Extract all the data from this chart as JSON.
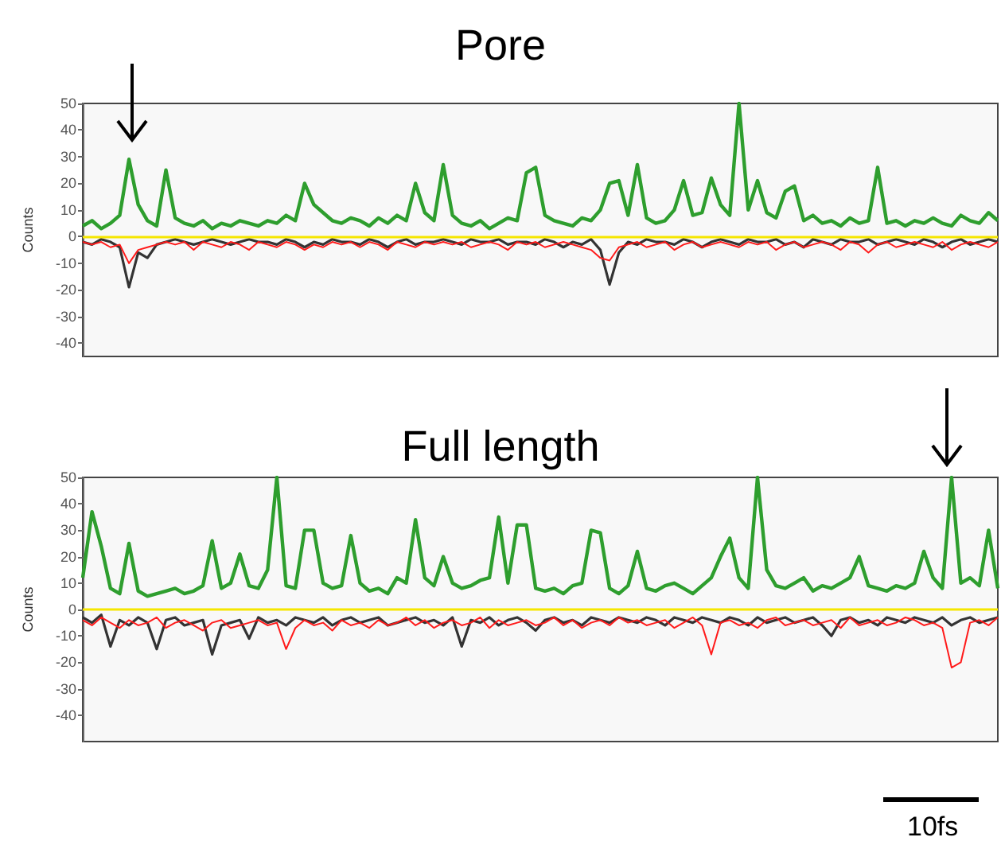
{
  "chart_data": [
    {
      "type": "line",
      "title": "Pore",
      "ylabel": "Counts",
      "tick_labels": "y",
      "grid": false,
      "line_style": "solid",
      "categories": [
        null,
        null,
        null,
        null,
        null,
        null,
        null,
        null,
        null,
        null,
        null,
        null,
        null,
        null,
        null,
        null,
        null,
        null,
        null,
        null,
        null,
        null,
        null,
        null,
        null,
        null,
        null,
        null,
        null,
        null,
        null,
        null,
        null,
        null,
        null,
        null,
        null,
        null,
        null,
        null,
        null,
        null,
        null,
        null,
        null,
        null,
        null,
        null,
        null,
        null,
        null,
        null,
        null,
        null,
        null,
        null,
        null,
        null,
        null,
        null,
        null,
        null,
        null,
        null,
        null,
        null,
        null,
        null,
        null,
        null,
        null,
        null,
        null,
        null,
        null,
        null,
        null,
        null,
        null,
        null,
        null,
        null,
        null,
        null,
        null,
        null,
        null,
        null,
        null,
        null,
        null,
        null,
        null,
        null,
        null,
        null,
        null,
        null,
        null,
        null
      ],
      "ylim": [
        -45,
        50
      ],
      "yticks": [
        -40,
        -30,
        -20,
        -10,
        0,
        10,
        20,
        30,
        40,
        50
      ],
      "ref_lines": [
        {
          "axis": "y",
          "value": 0,
          "color": "#f5e600"
        }
      ],
      "series": [
        {
          "color": "#2e9e2e",
          "values": [
            4,
            6,
            3,
            5,
            8,
            29,
            12,
            6,
            4,
            25,
            7,
            5,
            4,
            6,
            3,
            5,
            4,
            6,
            5,
            4,
            6,
            5,
            8,
            6,
            20,
            12,
            9,
            6,
            5,
            7,
            6,
            4,
            7,
            5,
            8,
            6,
            20,
            9,
            6,
            27,
            8,
            5,
            4,
            6,
            3,
            5,
            7,
            6,
            24,
            26,
            8,
            6,
            5,
            4,
            7,
            6,
            10,
            20,
            21,
            8,
            27,
            7,
            5,
            6,
            10,
            21,
            8,
            9,
            22,
            12,
            8,
            50,
            10,
            21,
            9,
            7,
            17,
            19,
            6,
            8,
            5,
            6,
            4,
            7,
            5,
            6,
            26,
            5,
            6,
            4,
            6,
            5,
            7,
            5,
            4,
            8,
            6,
            5,
            9,
            6
          ]
        },
        {
          "color": "#333333",
          "values": [
            -2,
            -3,
            -1,
            -2,
            -4,
            -19,
            -6,
            -8,
            -3,
            -2,
            -1,
            -2,
            -3,
            -2,
            -1,
            -2,
            -3,
            -2,
            -1,
            -2,
            -2,
            -3,
            -1,
            -2,
            -4,
            -2,
            -3,
            -1,
            -2,
            -2,
            -3,
            -1,
            -2,
            -4,
            -2,
            -1,
            -3,
            -2,
            -2,
            -1,
            -2,
            -3,
            -1,
            -2,
            -2,
            -1,
            -3,
            -2,
            -2,
            -3,
            -1,
            -2,
            -4,
            -2,
            -3,
            -1,
            -5,
            -18,
            -6,
            -2,
            -3,
            -1,
            -2,
            -2,
            -3,
            -1,
            -2,
            -4,
            -2,
            -1,
            -2,
            -3,
            -1,
            -2,
            -2,
            -1,
            -3,
            -2,
            -4,
            -1,
            -2,
            -3,
            -1,
            -2,
            -2,
            -1,
            -3,
            -2,
            -1,
            -2,
            -3,
            -1,
            -2,
            -4,
            -2,
            -1,
            -3,
            -2,
            -1,
            -2
          ]
        },
        {
          "color": "#ff1a1a",
          "values": [
            -2,
            -3,
            -2,
            -4,
            -3,
            -10,
            -5,
            -4,
            -3,
            -2,
            -3,
            -2,
            -5,
            -2,
            -3,
            -4,
            -2,
            -3,
            -5,
            -2,
            -3,
            -4,
            -2,
            -3,
            -5,
            -3,
            -4,
            -2,
            -3,
            -2,
            -4,
            -2,
            -3,
            -5,
            -2,
            -3,
            -4,
            -2,
            -3,
            -2,
            -3,
            -2,
            -4,
            -3,
            -2,
            -3,
            -5,
            -2,
            -3,
            -2,
            -4,
            -3,
            -2,
            -3,
            -4,
            -5,
            -8,
            -9,
            -4,
            -3,
            -2,
            -4,
            -3,
            -2,
            -5,
            -3,
            -2,
            -4,
            -3,
            -2,
            -3,
            -4,
            -2,
            -3,
            -2,
            -5,
            -3,
            -2,
            -4,
            -3,
            -2,
            -3,
            -5,
            -2,
            -3,
            -6,
            -3,
            -2,
            -4,
            -3,
            -2,
            -3,
            -4,
            -2,
            -5,
            -3,
            -2,
            -3,
            -4,
            -2
          ]
        }
      ]
    },
    {
      "type": "line",
      "title": "Full length",
      "ylabel": "Counts",
      "tick_labels": "y",
      "grid": false,
      "line_style": "solid",
      "categories": [
        null,
        null,
        null,
        null,
        null,
        null,
        null,
        null,
        null,
        null,
        null,
        null,
        null,
        null,
        null,
        null,
        null,
        null,
        null,
        null,
        null,
        null,
        null,
        null,
        null,
        null,
        null,
        null,
        null,
        null,
        null,
        null,
        null,
        null,
        null,
        null,
        null,
        null,
        null,
        null,
        null,
        null,
        null,
        null,
        null,
        null,
        null,
        null,
        null,
        null,
        null,
        null,
        null,
        null,
        null,
        null,
        null,
        null,
        null,
        null,
        null,
        null,
        null,
        null,
        null,
        null,
        null,
        null,
        null,
        null,
        null,
        null,
        null,
        null,
        null,
        null,
        null,
        null,
        null,
        null,
        null,
        null,
        null,
        null,
        null,
        null,
        null,
        null,
        null,
        null,
        null,
        null,
        null,
        null,
        null,
        null,
        null,
        null,
        null,
        null
      ],
      "ylim": [
        -50,
        50
      ],
      "yticks": [
        -40,
        -30,
        -20,
        -10,
        0,
        10,
        20,
        30,
        40,
        50
      ],
      "ref_lines": [
        {
          "axis": "y",
          "value": 0,
          "color": "#f5e600"
        }
      ],
      "annotations": [
        "10fs"
      ],
      "series": [
        {
          "color": "#2e9e2e",
          "values": [
            12,
            37,
            24,
            8,
            6,
            25,
            7,
            5,
            6,
            7,
            8,
            6,
            7,
            9,
            26,
            8,
            10,
            21,
            9,
            8,
            15,
            50,
            9,
            8,
            30,
            30,
            10,
            8,
            9,
            28,
            10,
            7,
            8,
            6,
            12,
            10,
            34,
            12,
            9,
            20,
            10,
            8,
            9,
            11,
            12,
            35,
            10,
            32,
            32,
            8,
            7,
            8,
            6,
            9,
            10,
            30,
            29,
            8,
            6,
            9,
            22,
            8,
            7,
            9,
            10,
            8,
            6,
            9,
            12,
            20,
            27,
            12,
            8,
            50,
            15,
            9,
            8,
            10,
            12,
            7,
            9,
            8,
            10,
            12,
            20,
            9,
            8,
            7,
            9,
            8,
            10,
            22,
            12,
            8,
            50,
            10,
            12,
            9,
            30,
            8
          ]
        },
        {
          "color": "#333333",
          "values": [
            -3,
            -5,
            -2,
            -14,
            -4,
            -6,
            -3,
            -5,
            -15,
            -4,
            -3,
            -6,
            -5,
            -4,
            -17,
            -6,
            -5,
            -4,
            -11,
            -3,
            -5,
            -4,
            -6,
            -3,
            -4,
            -5,
            -3,
            -6,
            -4,
            -3,
            -5,
            -4,
            -3,
            -6,
            -5,
            -4,
            -3,
            -5,
            -4,
            -6,
            -3,
            -14,
            -4,
            -5,
            -3,
            -6,
            -4,
            -3,
            -5,
            -8,
            -4,
            -3,
            -5,
            -4,
            -6,
            -3,
            -4,
            -5,
            -3,
            -4,
            -5,
            -3,
            -4,
            -6,
            -3,
            -4,
            -5,
            -3,
            -4,
            -5,
            -3,
            -4,
            -6,
            -3,
            -5,
            -4,
            -3,
            -5,
            -4,
            -3,
            -6,
            -10,
            -4,
            -3,
            -5,
            -4,
            -6,
            -3,
            -4,
            -5,
            -3,
            -4,
            -5,
            -3,
            -6,
            -4,
            -3,
            -5,
            -4,
            -3
          ]
        },
        {
          "color": "#ff1a1a",
          "values": [
            -4,
            -6,
            -3,
            -5,
            -7,
            -4,
            -6,
            -5,
            -3,
            -7,
            -5,
            -4,
            -6,
            -8,
            -5,
            -4,
            -7,
            -6,
            -5,
            -4,
            -6,
            -5,
            -15,
            -7,
            -4,
            -6,
            -5,
            -8,
            -4,
            -6,
            -5,
            -7,
            -4,
            -6,
            -5,
            -3,
            -6,
            -4,
            -7,
            -5,
            -4,
            -6,
            -5,
            -3,
            -7,
            -4,
            -6,
            -5,
            -4,
            -6,
            -5,
            -3,
            -6,
            -4,
            -7,
            -5,
            -4,
            -6,
            -3,
            -5,
            -4,
            -6,
            -5,
            -4,
            -7,
            -5,
            -3,
            -6,
            -17,
            -5,
            -4,
            -6,
            -5,
            -7,
            -4,
            -3,
            -6,
            -5,
            -4,
            -6,
            -5,
            -4,
            -7,
            -3,
            -6,
            -5,
            -4,
            -6,
            -5,
            -3,
            -4,
            -6,
            -5,
            -7,
            -22,
            -20,
            -5,
            -4,
            -6,
            -3
          ]
        }
      ]
    }
  ]
}
